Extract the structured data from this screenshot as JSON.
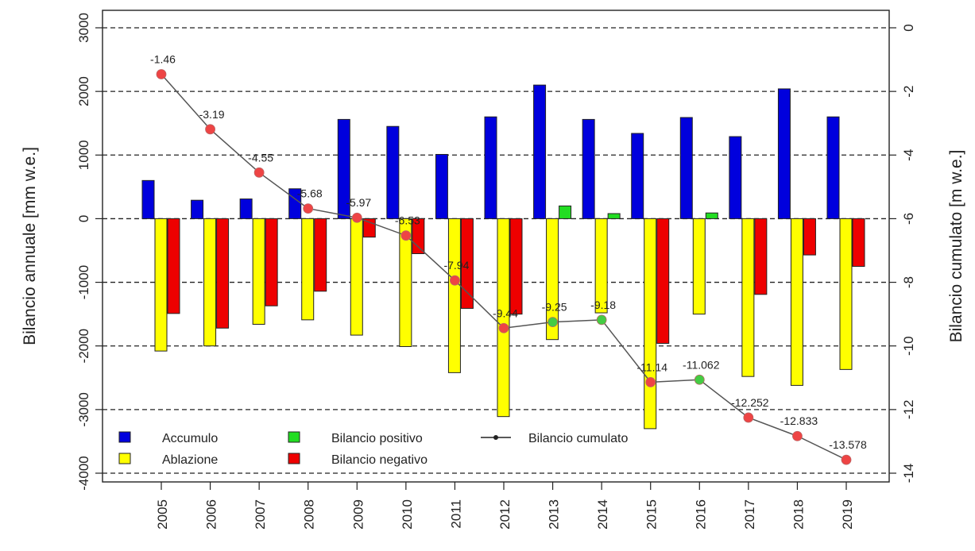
{
  "chart_data": {
    "type": "bar",
    "title": "",
    "ylabel": "Bilancio annuale [mm w.e.]",
    "y2label": "Bilancio cumulato [m w.e.]",
    "categories": [
      "2005",
      "2006",
      "2007",
      "2008",
      "2009",
      "2010",
      "2011",
      "2012",
      "2013",
      "2014",
      "2015",
      "2016",
      "2017",
      "2018",
      "2019"
    ],
    "ylim": [
      -4000,
      3000
    ],
    "y2lim": [
      -14,
      0
    ],
    "yticks": [
      -4000,
      -3000,
      -2000,
      -1000,
      0,
      1000,
      2000,
      3000
    ],
    "y2ticks": [
      -14,
      -12,
      -10,
      -8,
      -6,
      -4,
      -2,
      0
    ],
    "grid": "dashed horizontal at left-axis ticks",
    "legend_position": "bottom-left",
    "series": [
      {
        "name": "Accumulo",
        "color": "#0000dd",
        "values": [
          600,
          290,
          310,
          470,
          1560,
          1450,
          1010,
          1600,
          2100,
          1560,
          1340,
          1590,
          1290,
          2040,
          1600
        ]
      },
      {
        "name": "Ablazione",
        "color": "#ffff00",
        "values": [
          -2080,
          -2000,
          -1660,
          -1590,
          -1830,
          -2010,
          -2420,
          -3110,
          -1900,
          -1480,
          -3300,
          -1500,
          -2480,
          -2620,
          -2370
        ]
      },
      {
        "name": "Bilancio positivo",
        "color": "#22dd22",
        "values": [
          null,
          null,
          null,
          null,
          null,
          null,
          null,
          null,
          200,
          80,
          null,
          90,
          null,
          null,
          null
        ]
      },
      {
        "name": "Bilancio negativo",
        "color": "#ee0000",
        "values": [
          -1490,
          -1720,
          -1370,
          -1140,
          -290,
          -550,
          -1410,
          -1500,
          null,
          null,
          -1960,
          null,
          -1190,
          -570,
          -750
        ]
      },
      {
        "name": "Bilancio cumulato",
        "axis": "right",
        "color": "#444444",
        "values": [
          -1.46,
          -3.19,
          -4.55,
          -5.68,
          -5.97,
          -6.53,
          -7.94,
          -9.44,
          -9.25,
          -9.18,
          -11.14,
          -11.062,
          -12.252,
          -12.833,
          -13.578
        ],
        "labels": [
          "-1.46",
          "-3.19",
          "-4.55",
          "-5.68",
          "-5.97",
          "-6.53",
          "-7.94",
          "-9.44",
          "-9.25",
          "-9.18",
          "-11.14",
          "-11.062",
          "-12.252",
          "-12.833",
          "-13.578"
        ],
        "point_colors": [
          "#ee4444",
          "#ee4444",
          "#ee4444",
          "#ee4444",
          "#ee4444",
          "#ee4444",
          "#ee4444",
          "#ee4444",
          "#44cc44",
          "#44cc44",
          "#ee4444",
          "#44cc44",
          "#ee4444",
          "#ee4444",
          "#ee4444"
        ]
      }
    ]
  }
}
